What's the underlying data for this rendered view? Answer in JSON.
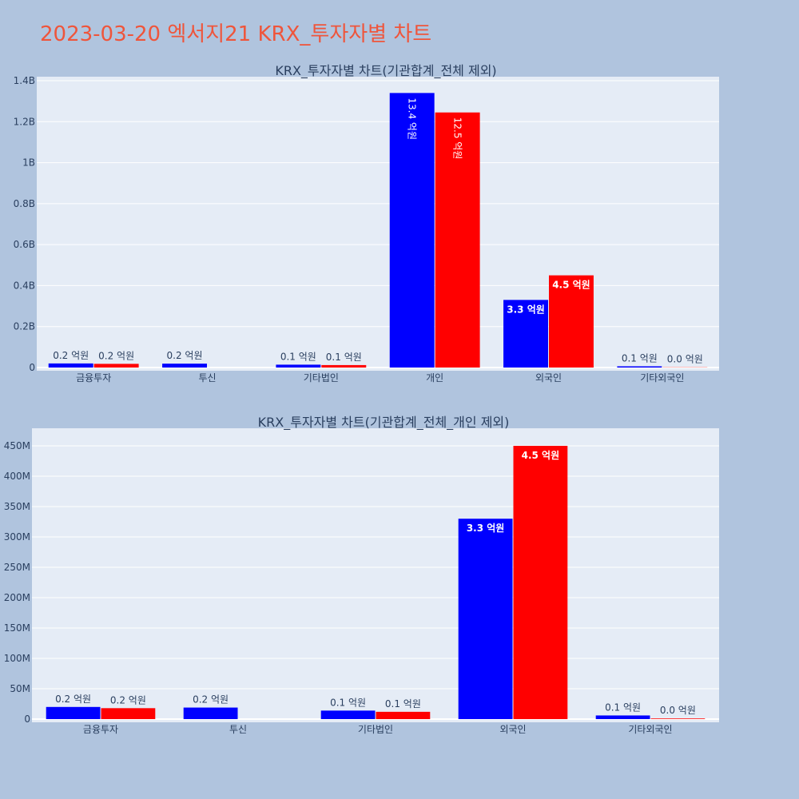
{
  "page": {
    "title": "2023-03-20 엑서지21 KRX_투자자별 차트"
  },
  "colors": {
    "background": "#b0c4de",
    "plot_background": "#e5ecf6",
    "series_buy": "#0000ff",
    "series_sell": "#ff0000",
    "title": "#ef553b",
    "text": "#2a3f5f"
  },
  "chart_data": [
    {
      "type": "bar",
      "title": "KRX_투자자별 차트(기관합계_전체 제외)",
      "categories": [
        "금융투자",
        "투신",
        "기타법인",
        "개인",
        "외국인",
        "기타외국인"
      ],
      "series": [
        {
          "color": "#0000ff",
          "values": [
            20000000,
            19000000,
            14000000,
            1340000000,
            330000000,
            6000000
          ],
          "labels": [
            "0.2 억원",
            "0.2 억원",
            "0.1 억원",
            "13.4 억원",
            "3.3 억원",
            "0.1 억원"
          ]
        },
        {
          "color": "#ff0000",
          "values": [
            18000000,
            0,
            12000000,
            1245000000,
            450000000,
            1000000
          ],
          "labels": [
            "0.2 억원",
            "",
            "0.1 억원",
            "12.5 억원",
            "4.5 억원",
            "0.0 억원"
          ]
        }
      ],
      "ylim": [
        0,
        1400000000
      ],
      "yticks": [
        0,
        200000000,
        400000000,
        600000000,
        800000000,
        1000000000,
        1200000000,
        1400000000
      ],
      "ytick_labels": [
        "0",
        "0.2B",
        "0.4B",
        "0.6B",
        "0.8B",
        "1B",
        "1.2B",
        "1.4B"
      ],
      "grid": true
    },
    {
      "type": "bar",
      "title": "KRX_투자자별 차트(기관합계_전체_개인 제외)",
      "categories": [
        "금융투자",
        "투신",
        "기타법인",
        "외국인",
        "기타외국인"
      ],
      "series": [
        {
          "color": "#0000ff",
          "values": [
            20000000,
            19000000,
            14000000,
            330000000,
            6000000
          ],
          "labels": [
            "0.2 억원",
            "0.2 억원",
            "0.1 억원",
            "3.3 억원",
            "0.1 억원"
          ]
        },
        {
          "color": "#ff0000",
          "values": [
            18000000,
            0,
            12000000,
            450000000,
            1000000
          ],
          "labels": [
            "0.2 억원",
            "",
            "0.1 억원",
            "4.5 억원",
            "0.0 억원"
          ]
        }
      ],
      "ylim": [
        0,
        450000000
      ],
      "yticks": [
        0,
        50000000,
        100000000,
        150000000,
        200000000,
        250000000,
        300000000,
        350000000,
        400000000,
        450000000
      ],
      "ytick_labels": [
        "0",
        "50M",
        "100M",
        "150M",
        "200M",
        "250M",
        "300M",
        "350M",
        "400M",
        "450M"
      ],
      "grid": true
    }
  ]
}
